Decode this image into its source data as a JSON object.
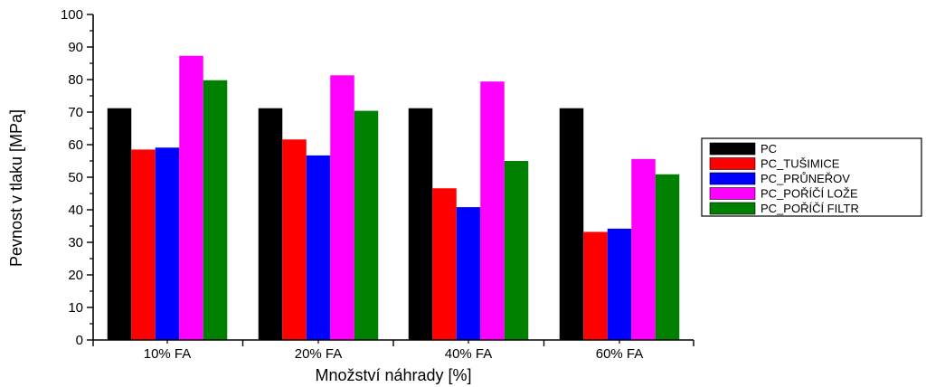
{
  "chart_data": {
    "type": "bar",
    "title": "",
    "xlabel": "Množství náhrady [%]",
    "ylabel": "Pevnost v tlaku [MPa]",
    "ylim": [
      0,
      100
    ],
    "yticks": [
      0,
      10,
      20,
      30,
      40,
      50,
      60,
      70,
      80,
      90,
      100
    ],
    "categories": [
      "10% FA",
      "20% FA",
      "40% FA",
      "60% FA"
    ],
    "legend_position": "right",
    "series": [
      {
        "name": "PC",
        "color": "#000000",
        "values": [
          71.2,
          71.2,
          71.2,
          71.2
        ]
      },
      {
        "name": "PC_TUŠIMICE",
        "color": "#ff0000",
        "values": [
          58.5,
          61.6,
          46.6,
          33.2
        ]
      },
      {
        "name": "PC_PRŮNEŘOV",
        "color": "#0000ff",
        "values": [
          59.1,
          56.7,
          40.8,
          34.2
        ]
      },
      {
        "name": "PC_POŘÍČÍ LOŽE",
        "color": "#ff00ff",
        "values": [
          87.3,
          81.3,
          79.4,
          55.6
        ]
      },
      {
        "name": "PC_POŘÍČÍ FILTR",
        "color": "#008000",
        "values": [
          79.8,
          70.4,
          55.0,
          50.9
        ]
      }
    ]
  }
}
